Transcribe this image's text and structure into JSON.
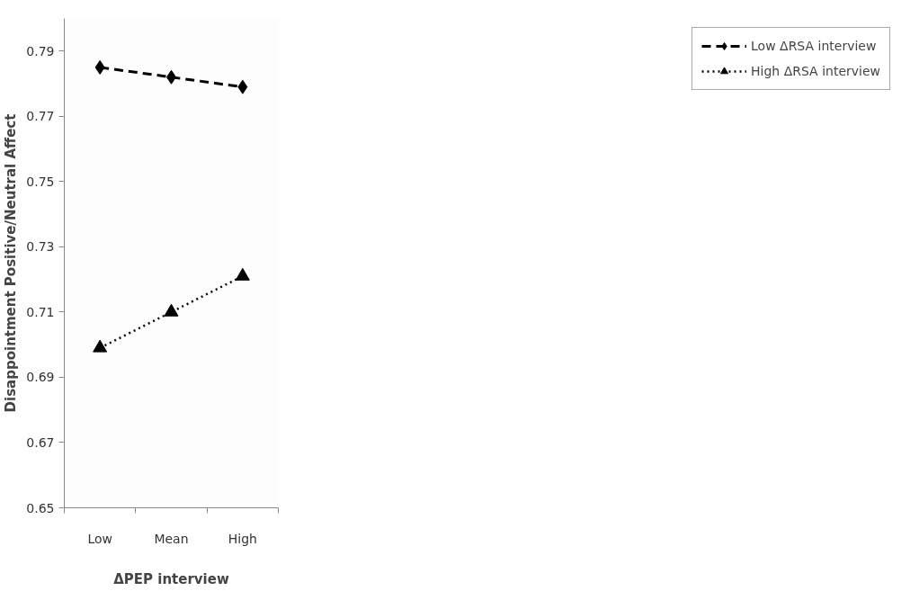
{
  "chart_data": {
    "type": "line",
    "xlabel": "ΔPEP interview",
    "ylabel": "Disappointment Positive/Neutral Affect",
    "categories": [
      "Low",
      "Mean",
      "High"
    ],
    "series": [
      {
        "name": "Low ΔRSA interview",
        "color": "#000000",
        "values": [
          0.785,
          0.782,
          0.779
        ],
        "marker": "diamond",
        "line_style": "dashed"
      },
      {
        "name": "High ΔRSA interview",
        "color": "#000000",
        "values": [
          0.699,
          0.71,
          0.721
        ],
        "marker": "triangle",
        "line_style": "dotted"
      }
    ],
    "ylim": [
      0.65,
      0.8
    ],
    "yticks": [
      0.65,
      0.67,
      0.69,
      0.71,
      0.73,
      0.75,
      0.77,
      0.79
    ],
    "grid": false,
    "legend": "right"
  }
}
